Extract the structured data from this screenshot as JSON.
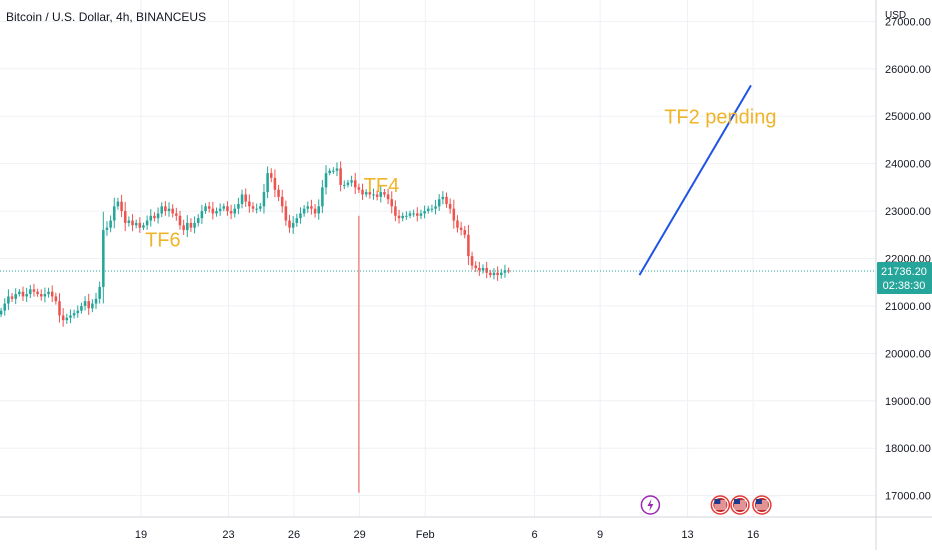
{
  "header": {
    "symbol_title": "Bitcoin / U.S. Dollar, 4h, BINANCEUS"
  },
  "price_axis": {
    "currency_label": "USD"
  },
  "last_price": {
    "price_label": "21736.20",
    "countdown_label": "02:38:30",
    "value": 21736.2,
    "color": "#26a69a"
  },
  "colors": {
    "up": "#26a69a",
    "down": "#ef5350",
    "projection": "#1e53e5",
    "annotation": "#f0b429",
    "grid": "#eef1f5",
    "axis_text": "#131722"
  },
  "chart_data": {
    "type": "candlestick",
    "title": "Bitcoin / U.S. Dollar, 4h, BINANCEUS",
    "ylabel": "USD",
    "ylim": [
      16550,
      27450
    ],
    "y_ticks": [
      17000,
      18000,
      19000,
      20000,
      21000,
      22000,
      23000,
      24000,
      25000,
      26000,
      27000
    ],
    "y_tick_labels": [
      "17000.00",
      "18000.00",
      "19000.00",
      "20000.00",
      "21000.00",
      "22000.00",
      "23000.00",
      "24000.00",
      "25000.00",
      "26000.00",
      "27000.00"
    ],
    "x_ticks": [
      {
        "label": "19",
        "day": 19
      },
      {
        "label": "23",
        "day": 23
      },
      {
        "label": "26",
        "day": 26
      },
      {
        "label": "29",
        "day": 29
      },
      {
        "label": "Feb",
        "day": 32
      },
      {
        "label": "6",
        "day": 37
      },
      {
        "label": "9",
        "day": 40
      },
      {
        "label": "13",
        "day": 44
      },
      {
        "label": "16",
        "day": 47
      }
    ],
    "x_range_days": [
      12.55,
      52.62
    ],
    "bar_day_step": 0.167,
    "closes": [
      20900,
      21050,
      21200,
      21150,
      21250,
      21300,
      21200,
      21250,
      21350,
      21300,
      21250,
      21200,
      21250,
      21300,
      21200,
      21100,
      20800,
      20700,
      20750,
      20800,
      20850,
      20900,
      21000,
      21100,
      20950,
      21050,
      21150,
      21400,
      22600,
      22650,
      22800,
      23100,
      23200,
      23000,
      22750,
      22800,
      22700,
      22750,
      22650,
      22700,
      22800,
      22900,
      22850,
      22950,
      23100,
      23000,
      23050,
      22950,
      22900,
      22700,
      22600,
      22750,
      22650,
      22750,
      22850,
      23000,
      23100,
      23050,
      22950,
      23000,
      23050,
      23100,
      23000,
      22950,
      23050,
      23150,
      23350,
      23200,
      23100,
      23050,
      23050,
      23100,
      23400,
      23800,
      23700,
      23450,
      23300,
      23100,
      22800,
      22650,
      22750,
      22850,
      22950,
      23050,
      23100,
      23050,
      22950,
      23100,
      23500,
      23800,
      23850,
      23850,
      23900,
      23550,
      23550,
      23600,
      23650,
      23500,
      23450,
      23350,
      23400,
      23350,
      23350,
      23300,
      23400,
      23350,
      23250,
      23100,
      22900,
      22850,
      22900,
      22900,
      22950,
      22950,
      22900,
      22950,
      23000,
      23050,
      23050,
      23100,
      23250,
      23300,
      23150,
      23050,
      22800,
      22650,
      22600,
      22500,
      22050,
      21850,
      21800,
      21750,
      21800,
      21700,
      21650,
      21700,
      21650,
      21700,
      21750,
      21736.2
    ],
    "series": [
      {
        "name": "",
        "type": "candlestick"
      },
      {
        "name": "",
        "type": "line",
        "points": [
          {
            "day": 41.8,
            "value": 21650
          },
          {
            "day": 46.9,
            "value": 25650
          }
        ]
      }
    ],
    "annotations": [
      {
        "text": "TF6",
        "day": 20.0,
        "value": 22250
      },
      {
        "text": "TF4",
        "day": 30.0,
        "value": 23400
      },
      {
        "text": "TF2 pending",
        "day": 45.5,
        "value": 24850
      }
    ],
    "grid": true,
    "legend": "none"
  },
  "event_markers": [
    {
      "icon": "lightning-icon",
      "glyph": "⚡",
      "day": 42.3
    },
    {
      "icon": "us-flag-icon",
      "glyph": "",
      "day": 45.5
    },
    {
      "icon": "us-flag-icon",
      "glyph": "",
      "day": 46.4
    },
    {
      "icon": "us-flag-icon",
      "glyph": "",
      "day": 47.4
    }
  ]
}
